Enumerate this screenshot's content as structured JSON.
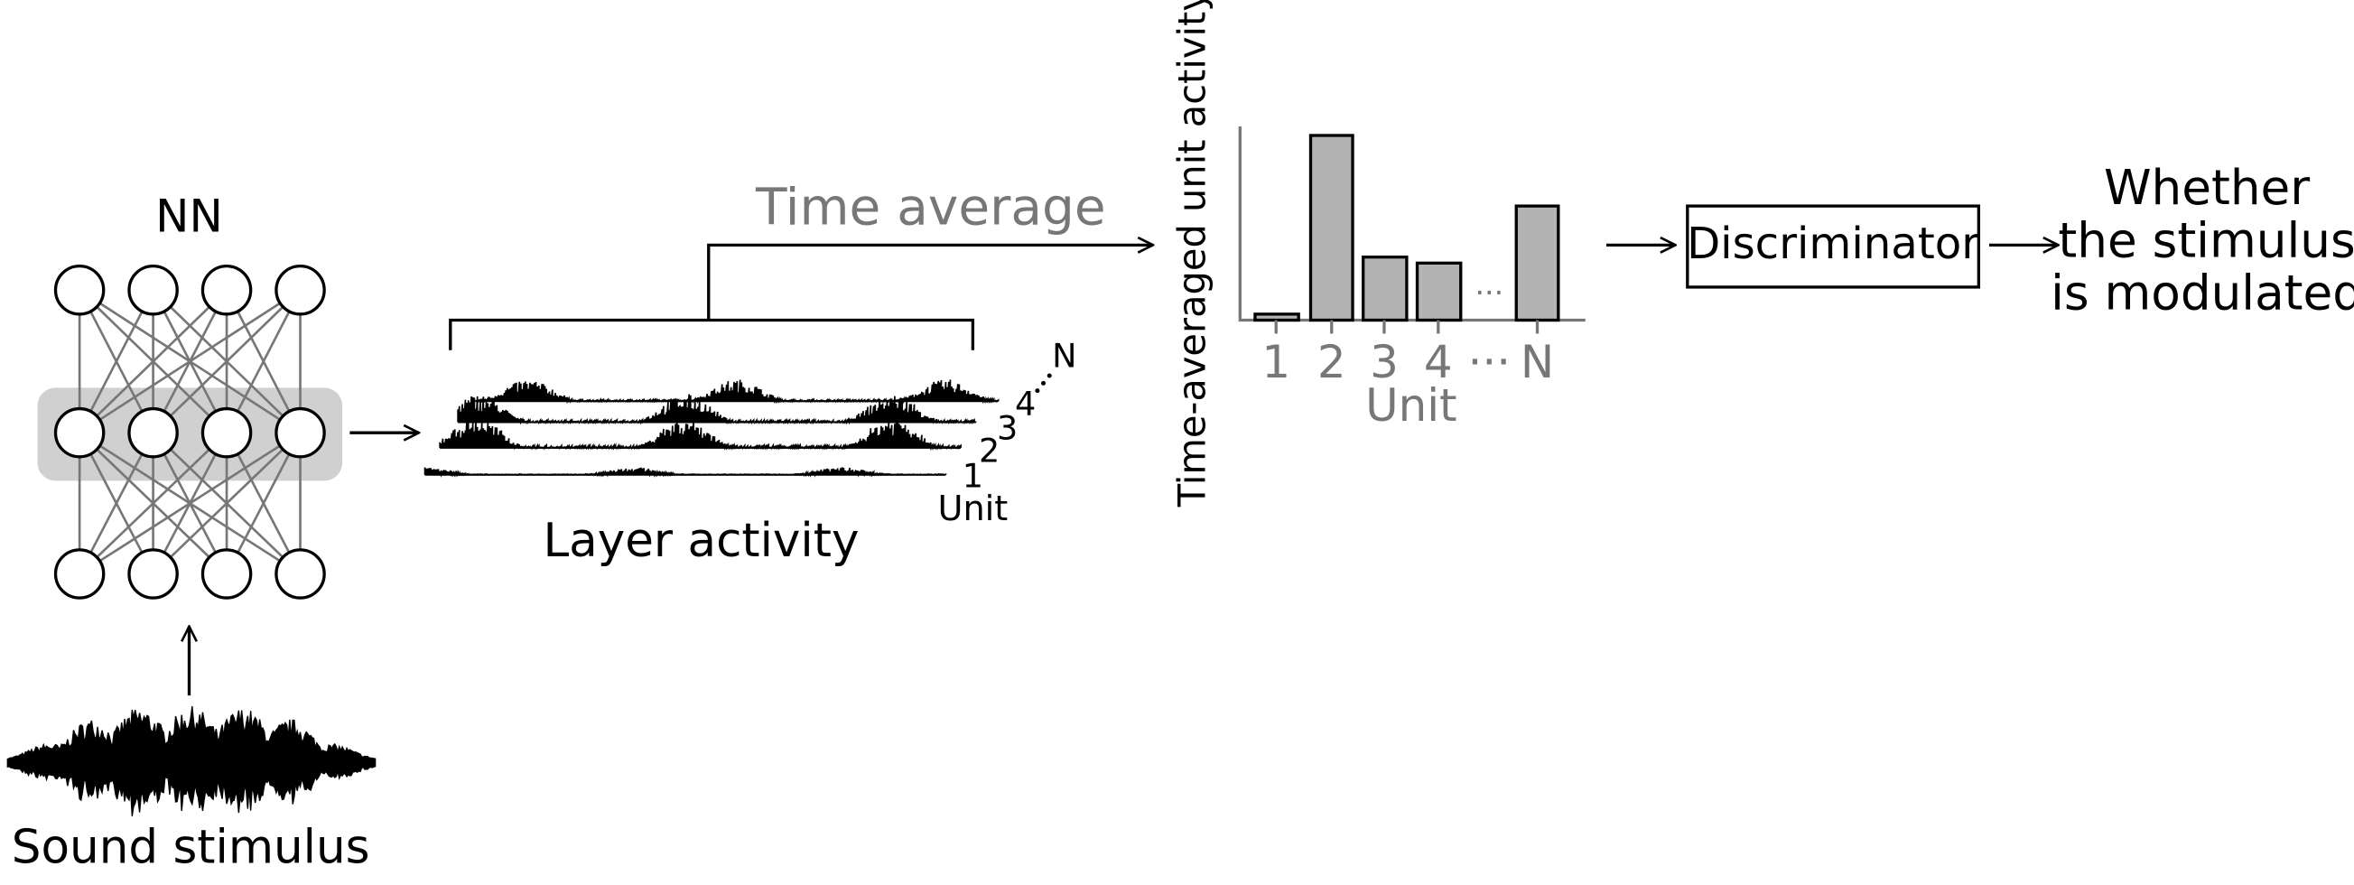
{
  "nn": {
    "title": "NN"
  },
  "stimulus": {
    "label": "Sound stimulus"
  },
  "layer": {
    "label": "Layer activity",
    "unit_axis": "Unit",
    "unit_labels": [
      "1",
      "2",
      "3",
      "4",
      "N"
    ]
  },
  "time_average": {
    "label": "Time average"
  },
  "bar_plot": {
    "y_label": "Time-averaged unit activity",
    "x_label": "Unit",
    "x_ticks": [
      "1",
      "2",
      "3",
      "4",
      "···",
      "N"
    ]
  },
  "discriminator": {
    "label": "Discriminator"
  },
  "output": {
    "lines": [
      "Whether",
      "the stimulus",
      "is modulated"
    ]
  }
}
